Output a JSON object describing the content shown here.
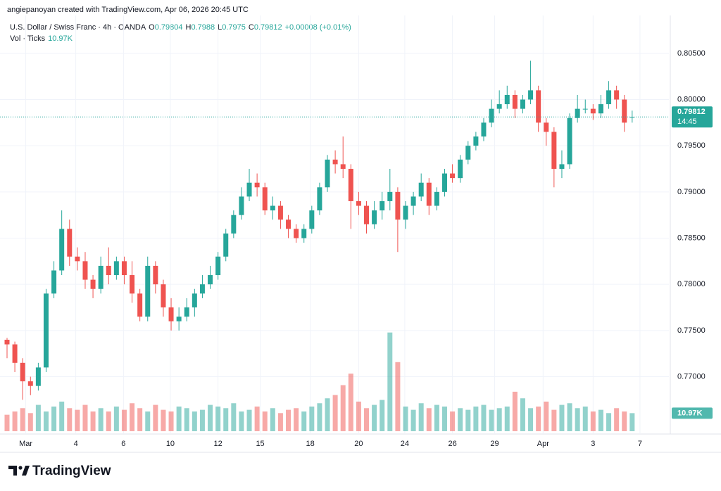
{
  "header": {
    "credit": "angiepanoyan created with TradingView.com, Apr 06, 2026 20:45 UTC"
  },
  "footer": {
    "brand": "TradingView"
  },
  "chart_data": {
    "type": "candlestick",
    "symbol": "U.S. Dollar / Swiss Franc · 4h · OANDA",
    "legend_keys": [
      "O",
      "H",
      "L",
      "C"
    ],
    "change_label": "+0.00008 (+0.01%)",
    "volume_title": "Vol · Ticks",
    "volume_label": "10.97K",
    "countdown": "14:45",
    "up_color": "#26a69a",
    "down_color": "#ef5350",
    "grid": true,
    "xlim": [
      -0.9,
      84.7
    ],
    "xticks": [
      {
        "value": 2.4,
        "label": "Mar"
      },
      {
        "value": 8.8,
        "label": "4"
      },
      {
        "value": 14.9,
        "label": "6"
      },
      {
        "value": 20.9,
        "label": "10"
      },
      {
        "value": 27,
        "label": "12"
      },
      {
        "value": 32.4,
        "label": "15"
      },
      {
        "value": 38.8,
        "label": "18"
      },
      {
        "value": 45,
        "label": "20"
      },
      {
        "value": 50.9,
        "label": "24"
      },
      {
        "value": 57,
        "label": "26"
      },
      {
        "value": 62.4,
        "label": "29"
      },
      {
        "value": 68.6,
        "label": "Apr"
      },
      {
        "value": 75,
        "label": "3"
      },
      {
        "value": 81,
        "label": "7"
      }
    ],
    "ylim": [
      0.7641,
      0.8091
    ],
    "yticks": [
      {
        "value": 0.77,
        "label": "0.77000"
      },
      {
        "value": 0.775,
        "label": "0.77500"
      },
      {
        "value": 0.78,
        "label": "0.78000"
      },
      {
        "value": 0.785,
        "label": "0.78500"
      },
      {
        "value": 0.79,
        "label": "0.79000"
      },
      {
        "value": 0.795,
        "label": "0.79500"
      },
      {
        "value": 0.8,
        "label": "0.80000"
      },
      {
        "value": 0.805,
        "label": "0.80500"
      }
    ],
    "vlim": [
      0,
      62
    ],
    "open": [
      0.774,
      0.7735,
      0.7715,
      0.7695,
      0.769,
      0.771,
      0.779,
      0.7815,
      0.786,
      0.783,
      0.7825,
      0.7805,
      0.7795,
      0.782,
      0.781,
      0.7825,
      0.781,
      0.779,
      0.7765,
      0.782,
      0.78,
      0.7775,
      0.776,
      0.7765,
      0.7775,
      0.779,
      0.78,
      0.781,
      0.783,
      0.7855,
      0.7875,
      0.7895,
      0.791,
      0.7905,
      0.788,
      0.7885,
      0.787,
      0.786,
      0.785,
      0.786,
      0.788,
      0.7905,
      0.7935,
      0.793,
      0.7925,
      0.789,
      0.7885,
      0.7865,
      0.788,
      0.789,
      0.79,
      0.787,
      0.7885,
      0.7895,
      0.791,
      0.7885,
      0.79,
      0.792,
      0.7915,
      0.7935,
      0.795,
      0.796,
      0.7975,
      0.799,
      0.7995,
      0.8005,
      0.799,
      0.8,
      0.801,
      0.7975,
      0.7965,
      0.7925,
      0.793,
      0.798,
      0.799,
      0.799,
      0.7985,
      0.7995,
      0.801,
      0.8,
      0.79804
    ],
    "high": [
      0.7742,
      0.7738,
      0.772,
      0.77,
      0.7715,
      0.7795,
      0.7825,
      0.788,
      0.787,
      0.784,
      0.7835,
      0.781,
      0.783,
      0.784,
      0.783,
      0.783,
      0.7825,
      0.7795,
      0.783,
      0.7825,
      0.7805,
      0.7785,
      0.7775,
      0.7785,
      0.7795,
      0.781,
      0.782,
      0.7835,
      0.786,
      0.788,
      0.7905,
      0.7925,
      0.792,
      0.791,
      0.7895,
      0.789,
      0.7875,
      0.7865,
      0.7865,
      0.7885,
      0.791,
      0.794,
      0.7945,
      0.796,
      0.793,
      0.79,
      0.789,
      0.789,
      0.79,
      0.7925,
      0.7905,
      0.789,
      0.79,
      0.792,
      0.7915,
      0.7905,
      0.7925,
      0.793,
      0.794,
      0.7955,
      0.7965,
      0.798,
      0.8,
      0.801,
      0.8015,
      0.801,
      0.8005,
      0.8042,
      0.8015,
      0.798,
      0.797,
      0.7945,
      0.7985,
      0.8005,
      0.8,
      0.7995,
      0.8005,
      0.802,
      0.8015,
      0.8005,
      0.7988
    ],
    "low": [
      0.772,
      0.7705,
      0.7675,
      0.768,
      0.7685,
      0.7705,
      0.7785,
      0.781,
      0.782,
      0.7815,
      0.7795,
      0.7785,
      0.779,
      0.78,
      0.7805,
      0.78,
      0.778,
      0.776,
      0.776,
      0.779,
      0.7765,
      0.775,
      0.775,
      0.776,
      0.7765,
      0.7785,
      0.7795,
      0.7805,
      0.7825,
      0.785,
      0.787,
      0.789,
      0.7895,
      0.7875,
      0.787,
      0.786,
      0.785,
      0.7845,
      0.7845,
      0.7855,
      0.7875,
      0.79,
      0.792,
      0.7915,
      0.786,
      0.7875,
      0.7855,
      0.786,
      0.787,
      0.788,
      0.7835,
      0.786,
      0.7875,
      0.789,
      0.7875,
      0.788,
      0.7895,
      0.791,
      0.791,
      0.793,
      0.7945,
      0.7955,
      0.797,
      0.7985,
      0.799,
      0.798,
      0.7985,
      0.7995,
      0.7965,
      0.795,
      0.7905,
      0.7915,
      0.7925,
      0.7975,
      0.7985,
      0.7978,
      0.798,
      0.799,
      0.799,
      0.7965,
      0.7975
    ],
    "close": [
      0.7735,
      0.7715,
      0.7695,
      0.769,
      0.771,
      0.779,
      0.7815,
      0.786,
      0.783,
      0.7825,
      0.7805,
      0.7795,
      0.782,
      0.781,
      0.7825,
      0.781,
      0.779,
      0.7765,
      0.782,
      0.78,
      0.7775,
      0.776,
      0.7765,
      0.7775,
      0.779,
      0.78,
      0.781,
      0.783,
      0.7855,
      0.7875,
      0.7895,
      0.791,
      0.7905,
      0.788,
      0.7885,
      0.787,
      0.786,
      0.785,
      0.786,
      0.788,
      0.7905,
      0.7935,
      0.793,
      0.7925,
      0.789,
      0.7885,
      0.7865,
      0.788,
      0.789,
      0.79,
      0.787,
      0.7885,
      0.7895,
      0.791,
      0.7885,
      0.79,
      0.792,
      0.7915,
      0.7935,
      0.795,
      0.796,
      0.7975,
      0.799,
      0.7995,
      0.8005,
      0.799,
      0.8,
      0.801,
      0.7975,
      0.7965,
      0.7925,
      0.793,
      0.798,
      0.799,
      0.799,
      0.7985,
      0.7995,
      0.801,
      0.8,
      0.7975,
      0.79812
    ],
    "volume": [
      10,
      12,
      14,
      11,
      16,
      12,
      15,
      18,
      14,
      13,
      16,
      12,
      14,
      12,
      15,
      13,
      17,
      14,
      12,
      16,
      13,
      12,
      15,
      14,
      12,
      13,
      16,
      15,
      14,
      17,
      12,
      13,
      15,
      12,
      14,
      11,
      13,
      14,
      12,
      15,
      17,
      20,
      22,
      28,
      35,
      18,
      14,
      16,
      19,
      60,
      42,
      15,
      13,
      17,
      14,
      16,
      15,
      12,
      14,
      13,
      15,
      16,
      13,
      14,
      15,
      24,
      20,
      14,
      15,
      18,
      13,
      16,
      17,
      14,
      15,
      12,
      13,
      11,
      14,
      12,
      10.97
    ]
  }
}
